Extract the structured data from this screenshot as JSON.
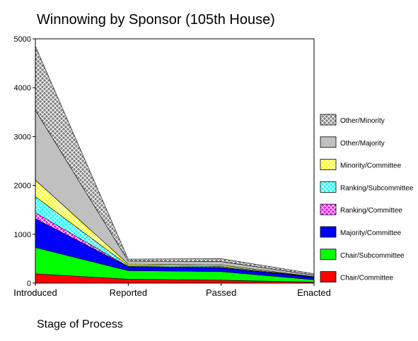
{
  "chart_data": {
    "type": "area",
    "stacked": true,
    "title": "Winnowing by Sponsor (105th House)",
    "xlabel": "Stage of Process",
    "ylabel": "",
    "categories": [
      "Introduced",
      "Reported",
      "Passed",
      "Enacted"
    ],
    "ylim": [
      0,
      5000
    ],
    "yticks": [
      0,
      1000,
      2000,
      3000,
      4000,
      5000
    ],
    "grid": false,
    "legend_position": "right",
    "series": [
      {
        "name": "Chair/Committee",
        "values": [
          190,
          80,
          60,
          20
        ],
        "color": "#ff0000",
        "pattern": "solid"
      },
      {
        "name": "Chair/Subcommittee",
        "values": [
          540,
          175,
          175,
          50
        ],
        "color": "#00ff00",
        "pattern": "solid"
      },
      {
        "name": "Majority/Committee",
        "values": [
          590,
          80,
          80,
          50
        ],
        "color": "#0000ff",
        "pattern": "solid"
      },
      {
        "name": "Ranking/Committee",
        "values": [
          120,
          5,
          5,
          2
        ],
        "color": "#ff00ff",
        "pattern": "crosshatch"
      },
      {
        "name": "Ranking/Subcommittee",
        "values": [
          330,
          20,
          20,
          5
        ],
        "color": "#00ffff",
        "pattern": "crosshatch"
      },
      {
        "name": "Minority/Committee",
        "values": [
          340,
          30,
          30,
          5
        ],
        "color": "#ffff00",
        "pattern": "crosshatch"
      },
      {
        "name": "Other/Majority",
        "values": [
          1430,
          60,
          70,
          30
        ],
        "color": "#c0c0c0",
        "pattern": "solid"
      },
      {
        "name": "Other/Minority",
        "values": [
          1310,
          40,
          60,
          30
        ],
        "color": "#808080",
        "pattern": "crosshatch"
      }
    ]
  }
}
